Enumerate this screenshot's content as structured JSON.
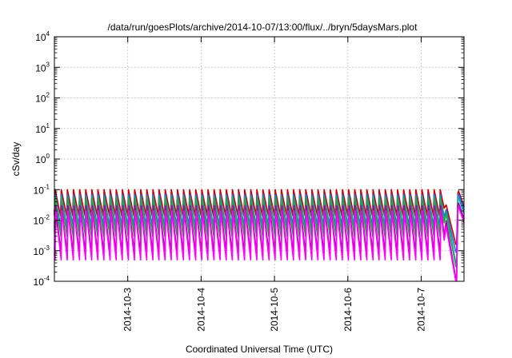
{
  "chart_data": {
    "type": "line",
    "title": "/data/run/goesPlots/archive/2014-10-07/13:00/flux/../bryn/5daysMars.plot",
    "xlabel": "Coordinated Universal Time (UTC)",
    "ylabel": "cSv/day",
    "y_scale": "log",
    "ylim": [
      0.0001,
      10000
    ],
    "y_ticks": [
      {
        "base": "10",
        "exp": "4",
        "value": 10000
      },
      {
        "base": "10",
        "exp": "3",
        "value": 1000
      },
      {
        "base": "10",
        "exp": "2",
        "value": 100
      },
      {
        "base": "10",
        "exp": "1",
        "value": 10
      },
      {
        "base": "10",
        "exp": "0",
        "value": 1
      },
      {
        "base": "10",
        "exp": "-1",
        "value": 0.1
      },
      {
        "base": "10",
        "exp": "-2",
        "value": 0.01
      },
      {
        "base": "10",
        "exp": "-3",
        "value": 0.001
      },
      {
        "base": "10",
        "exp": "-4",
        "value": 0.0001
      }
    ],
    "x_ticks": [
      "2014-10-3",
      "2014-10-4",
      "2014-10-5",
      "2014-10-6",
      "2014-10-7"
    ],
    "xlim": [
      "2014-10-02 00:00",
      "2014-10-07 14:00"
    ],
    "grid": true,
    "pattern": {
      "period_hours": 2.0,
      "gap_start": "2014-10-07 07:30",
      "gap_end": "2014-10-07 12:00"
    },
    "series": [
      {
        "color": "#cc0000",
        "peak": 0.1,
        "trough": 0.014,
        "gap_min": 0.0016,
        "end_value": 0.05
      },
      {
        "color": "#2266ee",
        "peak": 0.07,
        "trough": 0.006,
        "gap_min": 0.0009,
        "end_value": 0.04
      },
      {
        "color": "#00aaaa",
        "peak": 0.06,
        "trough": 0.004,
        "gap_min": 0.0004,
        "end_value": 0.03
      },
      {
        "color": "#22aa44",
        "peak": 0.05,
        "trough": 0.003,
        "gap_min": 0.0003,
        "end_value": 0.02
      },
      {
        "color": "#aa00aa",
        "peak": 0.03,
        "trough": 0.0008,
        "gap_min": 0.00012,
        "end_value": 0.02
      },
      {
        "color": "#ff00ff",
        "peak": 0.02,
        "trough": 0.0005,
        "gap_min": 0.0001,
        "end_value": 0.015
      }
    ]
  }
}
